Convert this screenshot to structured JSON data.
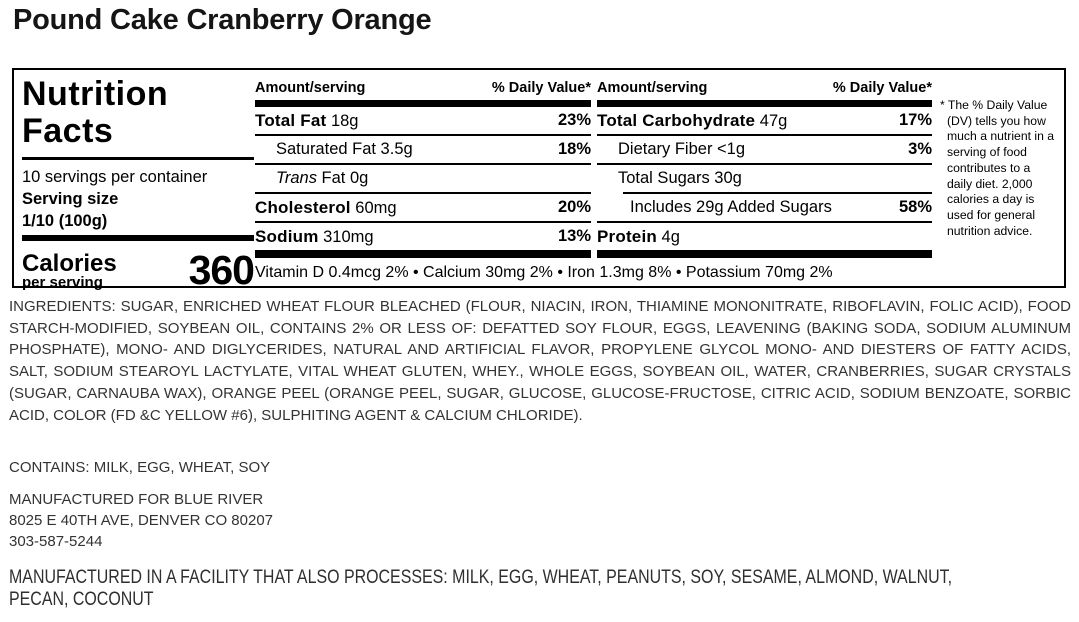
{
  "page_title": "Pound Cake Cranberry Orange",
  "label": {
    "heading_line1": "Nutrition",
    "heading_line2": "Facts",
    "servings_per_container": "10 servings per container",
    "serving_size_label": "Serving size",
    "serving_size_value": "1/10 (100g)",
    "calories_label": "Calories",
    "calories_sub": "per serving",
    "calories_value": "360",
    "col_header_amount": "Amount/serving",
    "col_header_dv": "% Daily Value*",
    "col1": {
      "rows": [
        {
          "bold": "Total Fat",
          "text": " 18g",
          "dv": "23%"
        },
        {
          "text": "Saturated Fat 3.5g",
          "dv": "18%"
        },
        {
          "italic": "Trans",
          "text": " Fat 0g",
          "dv": ""
        },
        {
          "bold": "Cholesterol",
          "text": " 60mg",
          "dv": "20%"
        },
        {
          "bold": "Sodium",
          "text": " 310mg",
          "dv": "13%"
        }
      ]
    },
    "col2": {
      "rows": [
        {
          "bold": "Total Carbohydrate",
          "text": " 47g",
          "dv": "17%"
        },
        {
          "text": "Dietary Fiber <1g",
          "dv": "3%"
        },
        {
          "text": "Total Sugars 30g",
          "dv": ""
        },
        {
          "text": "Includes 29g Added Sugars",
          "dv": "58%"
        },
        {
          "bold": "Protein",
          "text": " 4g",
          "dv": ""
        }
      ]
    },
    "micronutrients": "Vitamin D 0.4mcg 2% • Calcium 30mg 2% • Iron 1.3mg 8% • Potassium 70mg 2%",
    "footnote": "* The % Daily Value (DV) tells you how much a nutrient in a serving of food contributes to a daily diet. 2,000 calories a day is used for general nutrition advice."
  },
  "ingredients": "INGREDIENTS: SUGAR, ENRICHED WHEAT FLOUR BLEACHED (FLOUR, NIACIN, IRON, THIAMINE MONONITRATE, RIBOFLAVIN, FOLIC ACID), FOOD STARCH-MODIFIED, SOYBEAN OIL, CONTAINS 2% OR LESS OF: DEFATTED SOY FLOUR, EGGS, LEAVENING (BAKING SODA, SODIUM ALUMINUM PHOSPHATE), MONO- AND DIGLYCERIDES, NATURAL AND ARTIFICIAL FLAVOR, PROPYLENE GLYCOL MONO- AND DIESTERS OF FATTY ACIDS, SALT, SODIUM STEAROYL LACTYLATE, VITAL WHEAT GLUTEN, WHEY., WHOLE EGGS, SOYBEAN OIL, WATER, CRANBERRIES, SUGAR CRYSTALS (SUGAR, CARNAUBA WAX), ORANGE PEEL (ORANGE PEEL, SUGAR, GLUCOSE, GLUCOSE-FRUCTOSE, CITRIC ACID, SODIUM BENZOATE, SORBIC ACID, COLOR (FD &C YELLOW #6), SULPHITING AGENT & CALCIUM CHLORIDE).",
  "contains": "CONTAINS: MILK, EGG, WHEAT, SOY",
  "manufactured_for": {
    "line1": "MANUFACTURED FOR BLUE RIVER",
    "line2": "8025 E 40TH AVE, DENVER CO 80207",
    "line3": "303-587-5244"
  },
  "facility": {
    "line1": "MANUFACTURED IN A FACILITY THAT ALSO PROCESSES: MILK, EGG, WHEAT, PEANUTS, SOY, SESAME, ALMOND, WALNUT,",
    "line2": "PECAN, COCONUT"
  }
}
